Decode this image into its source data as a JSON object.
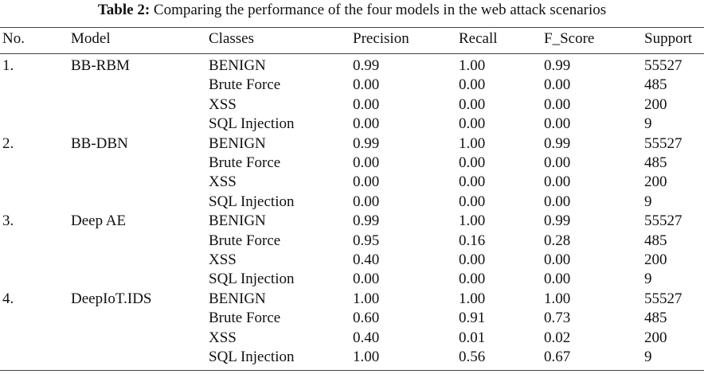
{
  "caption": {
    "label": "Table 2:",
    "text": "Comparing the performance of the four models in the web attack scenarios"
  },
  "columns": [
    "No.",
    "Model",
    "Classes",
    "Precision",
    "Recall",
    "F_Score",
    "Support"
  ],
  "groups": [
    {
      "no": "1.",
      "model": "BB-RBM",
      "rows": [
        {
          "class": "BENIGN",
          "precision": "0.99",
          "recall": "1.00",
          "f_score": "0.99",
          "support": "55527"
        },
        {
          "class": "Brute Force",
          "precision": "0.00",
          "recall": "0.00",
          "f_score": "0.00",
          "support": "485"
        },
        {
          "class": "XSS",
          "precision": "0.00",
          "recall": "0.00",
          "f_score": "0.00",
          "support": "200"
        },
        {
          "class": "SQL Injection",
          "precision": "0.00",
          "recall": "0.00",
          "f_score": "0.00",
          "support": "9"
        }
      ]
    },
    {
      "no": "2.",
      "model": "BB-DBN",
      "rows": [
        {
          "class": "BENIGN",
          "precision": "0.99",
          "recall": "1.00",
          "f_score": "0.99",
          "support": "55527"
        },
        {
          "class": "Brute Force",
          "precision": "0.00",
          "recall": "0.00",
          "f_score": "0.00",
          "support": "485"
        },
        {
          "class": "XSS",
          "precision": "0.00",
          "recall": "0.00",
          "f_score": "0.00",
          "support": "200"
        },
        {
          "class": "SQL Injection",
          "precision": "0.00",
          "recall": "0.00",
          "f_score": "0.00",
          "support": "9"
        }
      ]
    },
    {
      "no": "3.",
      "model": "Deep AE",
      "rows": [
        {
          "class": "BENIGN",
          "precision": "0.99",
          "recall": "1.00",
          "f_score": "0.99",
          "support": "55527"
        },
        {
          "class": "Brute Force",
          "precision": "0.95",
          "recall": "0.16",
          "f_score": "0.28",
          "support": "485"
        },
        {
          "class": "XSS",
          "precision": "0.40",
          "recall": "0.00",
          "f_score": "0.00",
          "support": "200"
        },
        {
          "class": "SQL Injection",
          "precision": "0.00",
          "recall": "0.00",
          "f_score": "0.00",
          "support": "9"
        }
      ]
    },
    {
      "no": "4.",
      "model": "DeepIoT.IDS",
      "rows": [
        {
          "class": "BENIGN",
          "precision": "1.00",
          "recall": "1.00",
          "f_score": "1.00",
          "support": "55527"
        },
        {
          "class": "Brute Force",
          "precision": "0.60",
          "recall": "0.91",
          "f_score": "0.73",
          "support": "485"
        },
        {
          "class": "XSS",
          "precision": "0.40",
          "recall": "0.01",
          "f_score": "0.02",
          "support": "200"
        },
        {
          "class": "SQL Injection",
          "precision": "1.00",
          "recall": "0.56",
          "f_score": "0.67",
          "support": "9"
        }
      ]
    }
  ]
}
